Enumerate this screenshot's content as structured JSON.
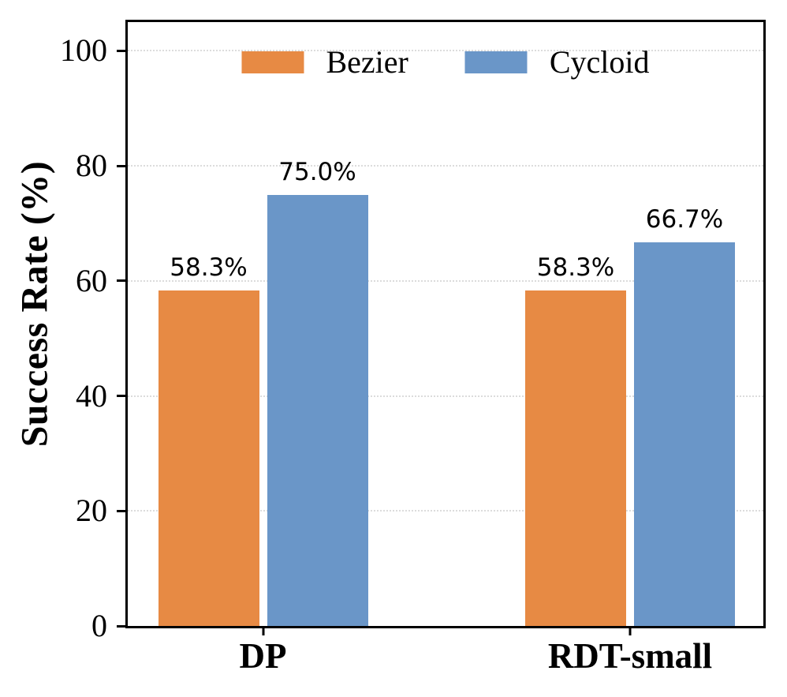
{
  "figure": {
    "background_color": "#FFFFFF",
    "axis_color": "#000000",
    "grid_color": "#DCDCDC"
  },
  "chart_data": {
    "type": "bar",
    "title": "",
    "xlabel": "",
    "ylabel": "Success Rate (%)",
    "categories": [
      "DP",
      "RDT-small"
    ],
    "series": [
      {
        "name": "Bezier",
        "color": "#E78A44",
        "values": [
          58.3,
          58.3
        ],
        "labels": [
          "58.3%",
          "58.3%"
        ]
      },
      {
        "name": "Cycloid",
        "color": "#6A96C8",
        "values": [
          75.0,
          66.7
        ],
        "labels": [
          "75.0%",
          "66.7%"
        ]
      }
    ],
    "ylim": [
      0,
      105
    ],
    "yticks": [
      0,
      20,
      40,
      60,
      80,
      100
    ],
    "grid": "horizontal-dotted",
    "legend_position": "upper center"
  }
}
